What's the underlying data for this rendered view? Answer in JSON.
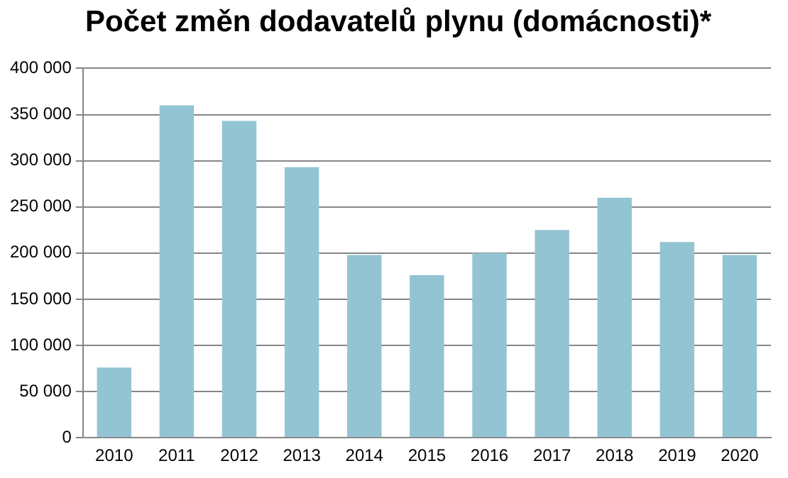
{
  "chart_data": {
    "type": "bar",
    "title": "Počet změn dodavatelů plynu (domácnosti)*",
    "categories": [
      "2010",
      "2011",
      "2012",
      "2013",
      "2014",
      "2015",
      "2016",
      "2017",
      "2018",
      "2019",
      "2020"
    ],
    "values": [
      76000,
      360000,
      343000,
      293000,
      198000,
      176000,
      200000,
      225000,
      260000,
      212000,
      198000
    ],
    "color": "#93c4d4",
    "ylim": [
      0,
      400000
    ],
    "yticks": [
      0,
      {
        "value": 50000,
        "label": "50 000"
      },
      {
        "value": 100000,
        "label": "100 000"
      },
      {
        "value": 150000,
        "label": "150 000"
      },
      {
        "value": 200000,
        "label": "200 000"
      },
      {
        "value": 250000,
        "label": "250 000"
      },
      {
        "value": 300000,
        "label": "300 000"
      },
      {
        "value": 350000,
        "label": "350 000"
      },
      {
        "value": 400000,
        "label": "400 000"
      }
    ],
    "grid": "y",
    "legend": false
  }
}
